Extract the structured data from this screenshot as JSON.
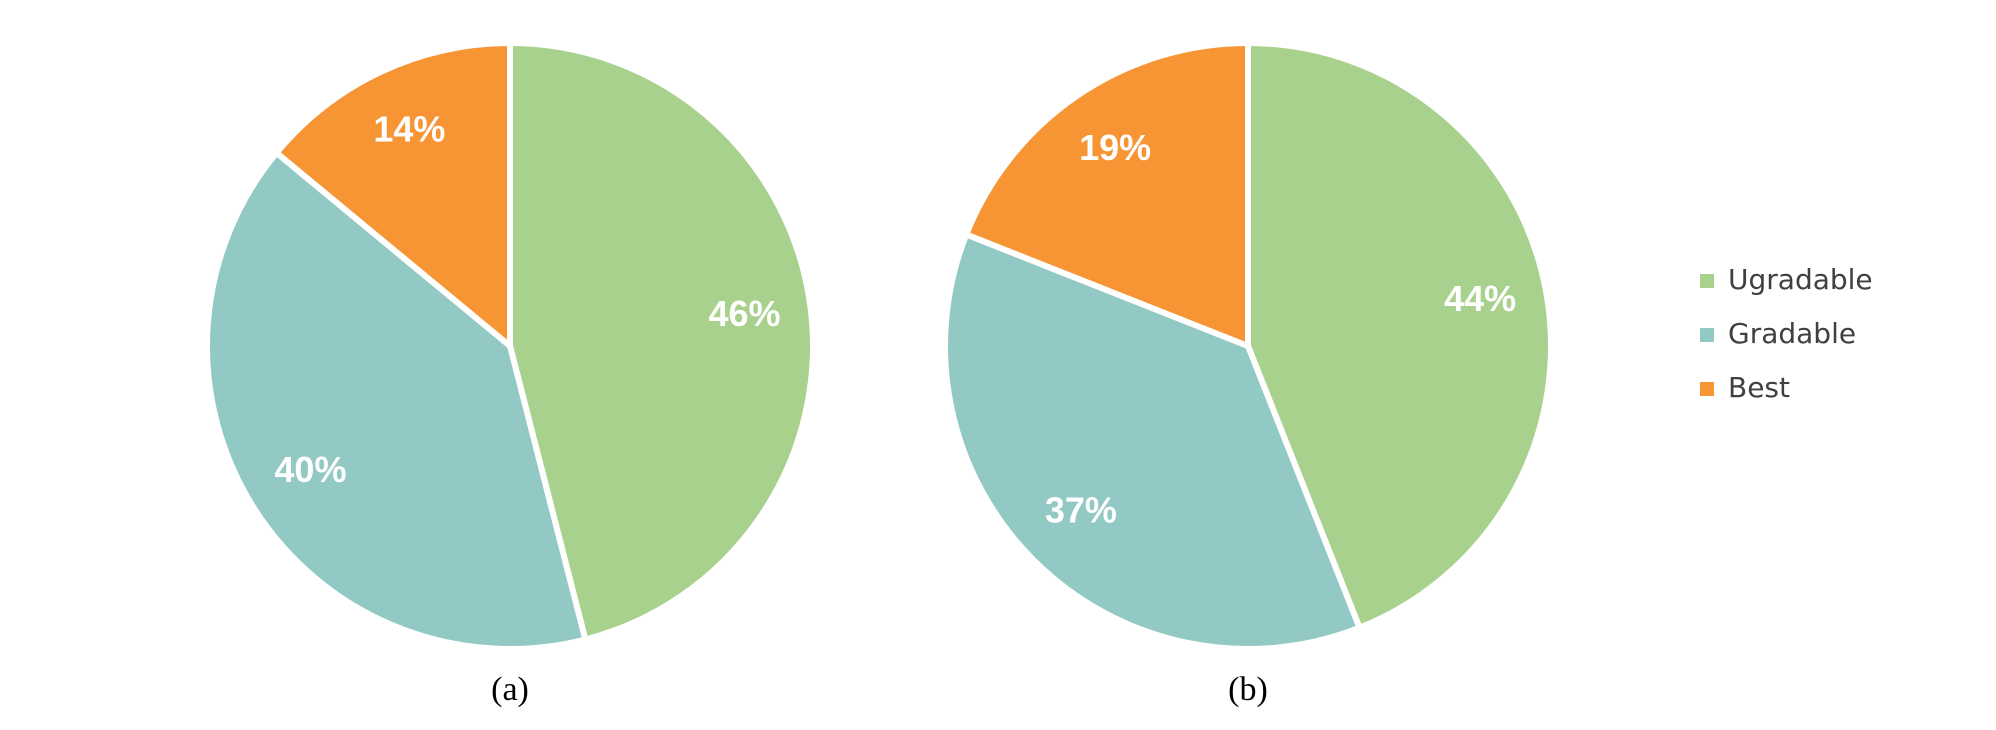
{
  "chart_data": [
    {
      "type": "pie",
      "title": "(a)",
      "categories": [
        "Ugradable",
        "Gradable",
        "Best"
      ],
      "values": [
        46,
        40,
        14
      ],
      "value_labels": [
        "46%",
        "40%",
        "14%"
      ],
      "colors": [
        "#a9d18e",
        "#92c9c4",
        "#f79433"
      ]
    },
    {
      "type": "pie",
      "title": "(b)",
      "categories": [
        "Ugradable",
        "Gradable",
        "Best"
      ],
      "values": [
        44,
        37,
        19
      ],
      "value_labels": [
        "44%",
        "37%",
        "19%"
      ],
      "colors": [
        "#a9d18e",
        "#92c9c4",
        "#f79433"
      ],
      "legend": "right"
    }
  ]
}
